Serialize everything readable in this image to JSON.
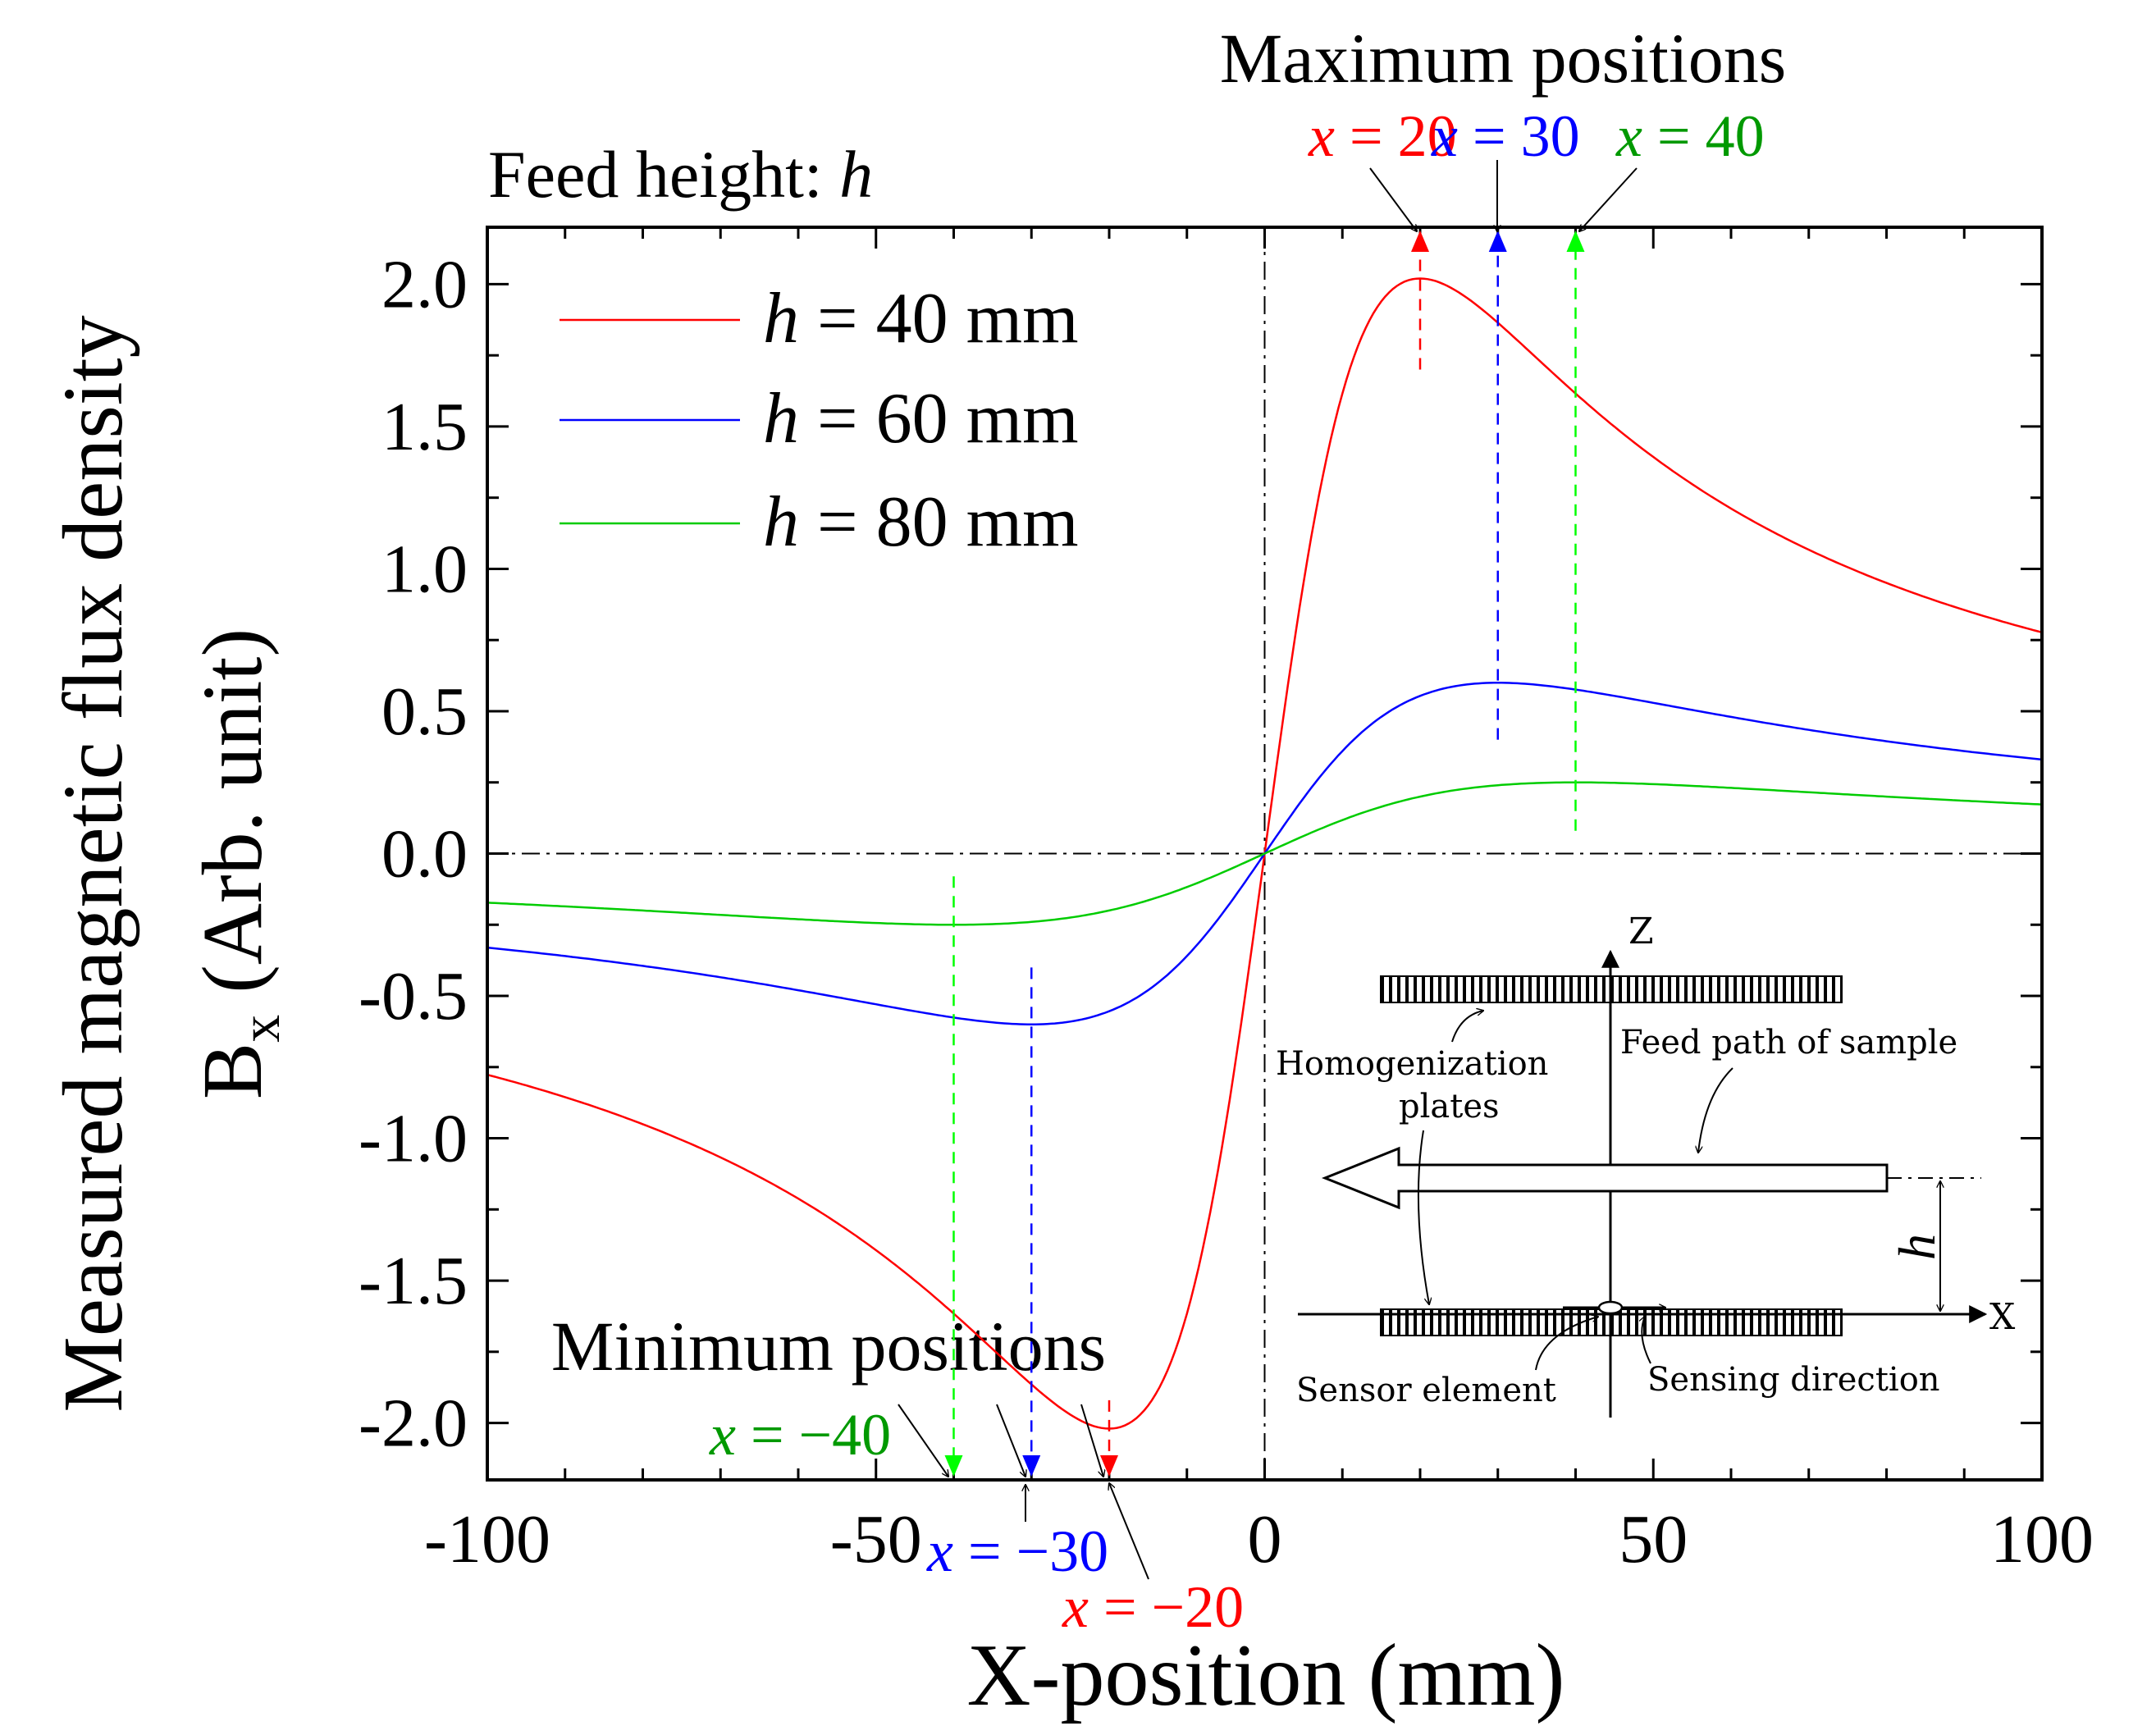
{
  "chart_data": {
    "type": "line",
    "title": "",
    "xlabel": "X-position (mm)",
    "ylabel_line1": "Measured magnetic flux density",
    "ylabel_line2_main": "B",
    "ylabel_line2_sub": "x",
    "ylabel_line2_rest": " (Arb. unit)",
    "xlim": [
      -100,
      100
    ],
    "ylim": [
      -2.2,
      2.2
    ],
    "x_ticks": [
      -100,
      -50,
      0,
      50,
      100
    ],
    "x_tick_labels": [
      "-100",
      "-50",
      "0",
      "50",
      "100"
    ],
    "y_ticks": [
      2.0,
      1.5,
      1.0,
      0.5,
      0.0,
      -0.5,
      -1.0,
      -1.5,
      -2.0
    ],
    "y_tick_labels": [
      "2.0",
      "1.5",
      "1.0",
      "0.5",
      "0.0",
      "-0.5",
      "-1.0",
      "-1.5",
      "-2.0"
    ],
    "legend_position": "top-left",
    "series": [
      {
        "name": "h = 40 mm",
        "legend_var": "h",
        "legend_rest": " = 40 mm",
        "color": "#ff0000",
        "h": 40,
        "peak_x": 20,
        "amplitude": 2.02
      },
      {
        "name": "h = 60 mm",
        "legend_var": "h",
        "legend_rest": " = 60 mm",
        "color": "#0000ff",
        "h": 60,
        "peak_x": 30,
        "amplitude": 0.6
      },
      {
        "name": "h = 80 mm",
        "legend_var": "h",
        "legend_rest": " = 80 mm",
        "color": "#00cc00",
        "h": 80,
        "peak_x": 40,
        "amplitude": 0.25
      }
    ],
    "annotations": {
      "feed_height_label": "Feed height: ",
      "feed_height_var": "h",
      "maximum_title": "Maximum positions",
      "minimum_title": "Minimum positions",
      "max_markers": [
        {
          "var": "x",
          "rest": " = 20",
          "x": 20,
          "color": "#ff0000",
          "label_color": "#ff0000"
        },
        {
          "var": "x",
          "rest": " = 30",
          "x": 30,
          "color": "#0000ff",
          "label_color": "#0000ff"
        },
        {
          "var": "x",
          "rest": " = 40",
          "x": 40,
          "color": "#00ff00",
          "label_color": "#009900"
        }
      ],
      "min_markers": [
        {
          "var": "x",
          "rest": " = −40",
          "x": -40,
          "color": "#00ff00",
          "label_color": "#009900"
        },
        {
          "var": "x",
          "rest": " = −30",
          "x": -30,
          "color": "#0000ff",
          "label_color": "#0000ff"
        },
        {
          "var": "x",
          "rest": " = −20",
          "x": -20,
          "color": "#ff0000",
          "label_color": "#ff0000"
        }
      ]
    },
    "inset": {
      "z_axis": "Z",
      "x_axis": "X",
      "h_label": "h",
      "homogenization_line1": "Homogenization",
      "homogenization_line2": "plates",
      "feed_path": "Feed path of sample",
      "sensor_element": "Sensor element",
      "sensing_direction": "Sensing direction"
    }
  }
}
